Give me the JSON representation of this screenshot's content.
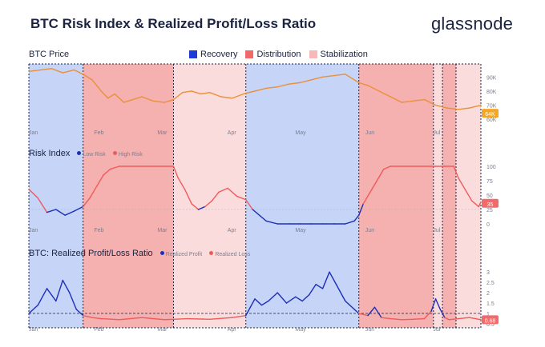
{
  "title": "BTC Risk Index & Realized Profit/Loss Ratio",
  "brand": "glassnode",
  "legend": {
    "recovery": "Recovery",
    "distribution": "Distribution",
    "stabilization": "Stabilization"
  },
  "colors": {
    "recovery": "#c6d4f7",
    "distribution": "#f5b0b0",
    "stabilization": "#fbdcdc",
    "recovery_swatch": "#1f3bd6",
    "distribution_swatch": "#f06a6a",
    "stabilization_swatch": "#f7b8b8",
    "price_line": "#e8913a",
    "low_risk": "#1d2fb8",
    "high_risk": "#f05a5a",
    "profit_line": "#1d2fb8",
    "loss_line": "#f05a5a",
    "current_badge_price": "#f5a623",
    "current_badge_risk": "#f26b6b"
  },
  "panels": {
    "price": {
      "label": "BTC Price",
      "ticks": [
        "90K",
        "80K",
        "70K",
        "60K"
      ],
      "current": "64K"
    },
    "risk": {
      "label": "Risk Index",
      "low": "Low Risk",
      "high": "High Risk",
      "ticks": [
        "100",
        "75",
        "50",
        "25",
        "0"
      ],
      "current": "35"
    },
    "ratio": {
      "label": "BTC: Realized Profit/Loss Ratio",
      "profit": "Realized Profit",
      "loss": "Realized Loss",
      "ticks": [
        "3",
        "2.5",
        "2",
        "1.5",
        "1",
        "0.5"
      ],
      "current": "0.68"
    }
  },
  "months": [
    "Jan",
    "Feb",
    "Mar",
    "Apr",
    "May",
    "Jun",
    "Jul"
  ],
  "chart_data": {
    "type": "line",
    "x_range_days": [
      0,
      192
    ],
    "months": [
      {
        "label": "Jan",
        "day": 0
      },
      {
        "label": "Feb",
        "day": 31
      },
      {
        "label": "Mar",
        "day": 59
      },
      {
        "label": "Apr",
        "day": 90
      },
      {
        "label": "May",
        "day": 120
      },
      {
        "label": "Jun",
        "day": 151
      },
      {
        "label": "Jul",
        "day": 181
      }
    ],
    "regimes": [
      {
        "type": "recovery",
        "start": 0,
        "end": 24
      },
      {
        "type": "distribution",
        "start": 24,
        "end": 64
      },
      {
        "type": "stabilization",
        "start": 64,
        "end": 96
      },
      {
        "type": "recovery",
        "start": 96,
        "end": 146
      },
      {
        "type": "distribution",
        "start": 146,
        "end": 179
      },
      {
        "type": "stabilization",
        "start": 179,
        "end": 183
      },
      {
        "type": "distribution",
        "start": 183,
        "end": 189
      },
      {
        "type": "stabilization",
        "start": 189,
        "end": 210
      }
    ],
    "price": {
      "ylim": [
        55,
        97
      ],
      "x": [
        0,
        5,
        10,
        15,
        20,
        24,
        28,
        32,
        35,
        38,
        42,
        46,
        50,
        55,
        60,
        64,
        68,
        72,
        76,
        80,
        85,
        90,
        95,
        100,
        105,
        110,
        115,
        120,
        125,
        130,
        135,
        140,
        146,
        150,
        155,
        160,
        165,
        170,
        175,
        180,
        185,
        190,
        195,
        200,
        205,
        210
      ],
      "values": [
        94,
        95,
        96,
        93,
        95,
        92,
        88,
        80,
        75,
        78,
        72,
        74,
        76,
        73,
        72,
        74,
        79,
        80,
        78,
        79,
        76,
        75,
        78,
        80,
        82,
        83,
        85,
        86,
        88,
        90,
        91,
        92,
        86,
        84,
        80,
        76,
        72,
        73,
        74,
        70,
        68,
        67,
        68,
        70,
        69,
        64
      ]
    },
    "risk": {
      "ylim": [
        0,
        100
      ],
      "threshold": 25,
      "x": [
        0,
        4,
        8,
        12,
        16,
        20,
        24,
        27,
        30,
        33,
        36,
        40,
        44,
        48,
        52,
        56,
        60,
        64,
        66,
        69,
        72,
        75,
        78,
        81,
        84,
        88,
        92,
        96,
        99,
        102,
        105,
        110,
        115,
        120,
        125,
        130,
        135,
        140,
        144,
        146,
        148,
        151,
        154,
        157,
        160,
        164,
        168,
        172,
        176,
        180,
        184,
        188,
        190,
        193,
        196,
        199,
        202,
        205
      ],
      "values": [
        60,
        45,
        20,
        25,
        15,
        22,
        30,
        45,
        65,
        85,
        95,
        100,
        100,
        100,
        100,
        100,
        100,
        100,
        80,
        60,
        35,
        25,
        30,
        40,
        55,
        62,
        48,
        42,
        25,
        15,
        5,
        0,
        0,
        0,
        0,
        0,
        0,
        0,
        5,
        15,
        35,
        55,
        75,
        95,
        100,
        100,
        100,
        100,
        100,
        100,
        100,
        100,
        80,
        60,
        40,
        30,
        38,
        35
      ]
    },
    "ratio": {
      "ylim": [
        0.5,
        3.2
      ],
      "threshold": 1,
      "x": [
        0,
        4,
        8,
        12,
        15,
        18,
        21,
        24,
        28,
        32,
        40,
        50,
        60,
        70,
        80,
        90,
        96,
        98,
        100,
        103,
        106,
        110,
        114,
        118,
        121,
        124,
        127,
        130,
        133,
        136,
        140,
        144,
        146,
        150,
        153,
        156,
        160,
        165,
        170,
        175,
        178,
        180,
        182,
        184,
        186,
        190,
        195,
        200,
        205
      ],
      "values": [
        1.0,
        1.4,
        2.2,
        1.6,
        2.6,
        2.0,
        1.2,
        0.9,
        0.8,
        0.75,
        0.7,
        0.8,
        0.7,
        0.75,
        0.72,
        0.8,
        0.9,
        1.3,
        1.7,
        1.4,
        1.6,
        2.0,
        1.5,
        1.8,
        1.6,
        1.9,
        2.4,
        2.2,
        3.0,
        2.4,
        1.6,
        1.2,
        1.0,
        0.9,
        1.3,
        0.8,
        0.75,
        0.7,
        0.72,
        0.75,
        1.1,
        1.7,
        1.2,
        0.8,
        0.7,
        0.75,
        0.8,
        0.7,
        0.68
      ]
    }
  }
}
